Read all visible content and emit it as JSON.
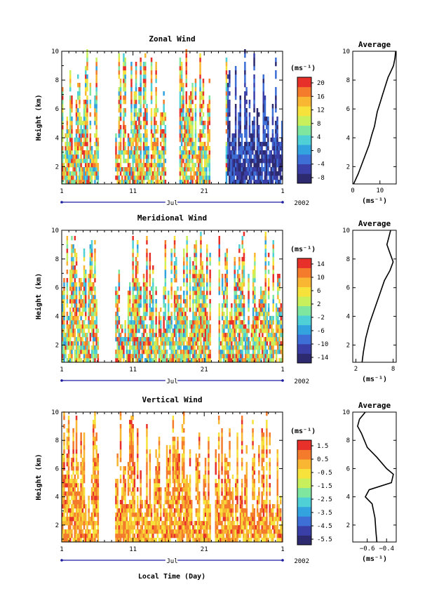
{
  "xlabel": "Local Time (Day)",
  "month_label": "Jul",
  "year_label": "2002",
  "x_ticklabels": [
    "1",
    "11",
    "21",
    "1"
  ],
  "unit": "(ms⁻¹)",
  "avg_title": "Average",
  "ylabel": "Height (km)",
  "panels": [
    {
      "key": "zonal",
      "title": "Zonal Wind",
      "colorbar_labels": [
        "20",
        "16",
        "12",
        "8",
        "4",
        "0",
        "-4",
        "-8"
      ],
      "avg_xticks": [
        0,
        10
      ],
      "avg_xlim": [
        0,
        16
      ],
      "avg_profile": [
        [
          0.3,
          0.8
        ],
        [
          2,
          1.5
        ],
        [
          4,
          2.5
        ],
        [
          6,
          3.5
        ],
        [
          7,
          4.2
        ],
        [
          8,
          4.8
        ],
        [
          8.5,
          5.3
        ],
        [
          9,
          5.8
        ],
        [
          10,
          6.4
        ],
        [
          11,
          7.0
        ],
        [
          12,
          7.6
        ],
        [
          13,
          8.2
        ],
        [
          14,
          8.6
        ],
        [
          15,
          9.0
        ],
        [
          15.5,
          9.5
        ],
        [
          15.8,
          10
        ]
      ],
      "day_fill": [
        [
          0,
          5
        ],
        [
          7.5,
          14.5
        ],
        [
          16.5,
          20.8
        ],
        [
          23,
          31
        ]
      ]
    },
    {
      "key": "meridional",
      "title": "Meridional Wind",
      "colorbar_labels": [
        "14",
        "10",
        "6",
        "2",
        "-2",
        "-6",
        "-10",
        "-14"
      ],
      "avg_xticks": [
        2,
        8
      ],
      "avg_xlim": [
        1.5,
        8.5
      ],
      "avg_profile": [
        [
          3.0,
          0.8
        ],
        [
          3.2,
          1.5
        ],
        [
          3.6,
          2.5
        ],
        [
          4.2,
          3.5
        ],
        [
          5.0,
          4.5
        ],
        [
          5.8,
          5.5
        ],
        [
          6.6,
          6.5
        ],
        [
          7.5,
          7.2
        ],
        [
          8.0,
          7.8
        ],
        [
          7.5,
          8.4
        ],
        [
          7.0,
          9.0
        ],
        [
          7.3,
          9.5
        ],
        [
          7.6,
          10
        ]
      ],
      "day_fill": [
        [
          0,
          5
        ],
        [
          7.5,
          20.8
        ],
        [
          22,
          31
        ]
      ]
    },
    {
      "key": "vertical",
      "title": "Vertical Wind",
      "colorbar_labels": [
        "1.5",
        "0.5",
        "-0.5",
        "-1.5",
        "-2.5",
        "-3.5",
        "-4.5",
        "-5.5"
      ],
      "avg_xticks": [
        -0.6,
        -0.4
      ],
      "avg_xticklabels": [
        "−0.6",
        "−0.4"
      ],
      "avg_xlim": [
        -0.75,
        -0.3
      ],
      "avg_profile": [
        [
          -0.5,
          0.8
        ],
        [
          -0.51,
          1.5
        ],
        [
          -0.52,
          2.5
        ],
        [
          -0.55,
          3.5
        ],
        [
          -0.62,
          4.0
        ],
        [
          -0.58,
          4.5
        ],
        [
          -0.35,
          5.0
        ],
        [
          -0.33,
          5.6
        ],
        [
          -0.4,
          6.0
        ],
        [
          -0.5,
          6.8
        ],
        [
          -0.6,
          7.5
        ],
        [
          -0.66,
          8.5
        ],
        [
          -0.7,
          9.0
        ],
        [
          -0.68,
          9.5
        ],
        [
          -0.62,
          10
        ]
      ],
      "day_fill": [
        [
          0,
          5
        ],
        [
          7.5,
          20.8
        ],
        [
          21.5,
          31
        ]
      ]
    }
  ],
  "chart_data": [
    {
      "type": "heatmap",
      "title": "Zonal Wind",
      "xlabel": "Jul",
      "ylabel": "Height (km)",
      "xlim": [
        1,
        32
      ],
      "ylim": [
        0.8,
        10
      ],
      "colorbar": {
        "unit": "(ms⁻¹)",
        "range": [
          -10,
          22
        ],
        "ticks": [
          20,
          16,
          12,
          8,
          4,
          0,
          -4,
          -8
        ]
      },
      "average_profile": {
        "title": "Average",
        "xlabel": "(ms⁻¹)",
        "xlim": [
          0,
          16
        ]
      }
    },
    {
      "type": "heatmap",
      "title": "Meridional Wind",
      "xlabel": "Jul",
      "ylabel": "Height (km)",
      "xlim": [
        1,
        32
      ],
      "ylim": [
        0.8,
        10
      ],
      "colorbar": {
        "unit": "(ms⁻¹)",
        "range": [
          -16,
          16
        ],
        "ticks": [
          14,
          10,
          6,
          2,
          -2,
          -6,
          -10,
          -14
        ]
      },
      "average_profile": {
        "title": "Average",
        "xlabel": "(ms⁻¹)",
        "xlim": [
          1.5,
          8.5
        ]
      }
    },
    {
      "type": "heatmap",
      "title": "Vertical Wind",
      "xlabel": "Local Time (Day)",
      "ylabel": "Height (km)",
      "xlim": [
        1,
        32
      ],
      "ylim": [
        0.8,
        10
      ],
      "colorbar": {
        "unit": "(ms⁻¹)",
        "range": [
          -6,
          2
        ],
        "ticks": [
          1.5,
          0.5,
          -0.5,
          -1.5,
          -2.5,
          -3.5,
          -4.5,
          -5.5
        ]
      },
      "average_profile": {
        "title": "Average",
        "xlabel": "(ms⁻¹)",
        "xlim": [
          -0.75,
          -0.3
        ]
      }
    }
  ]
}
